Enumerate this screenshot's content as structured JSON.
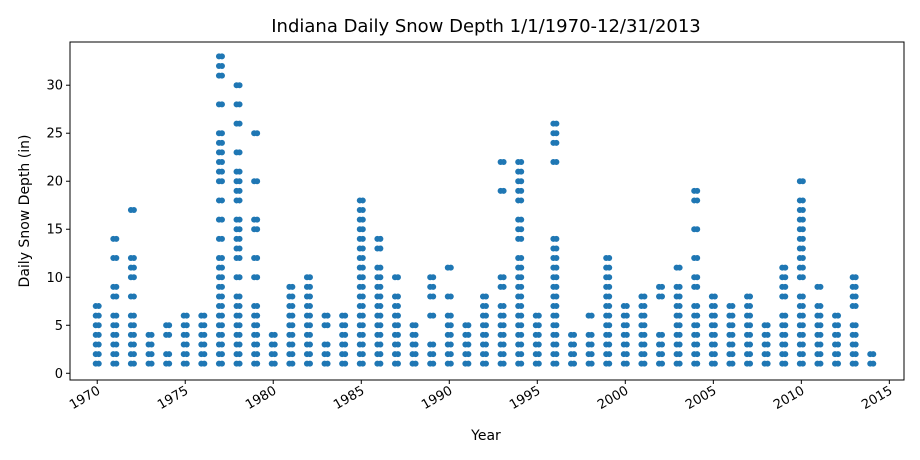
{
  "chart_data": {
    "type": "scatter",
    "title": "Indiana Daily Snow Depth 1/1/1970-12/31/2013",
    "xlabel": "Year",
    "ylabel": "Daily Snow Depth (in)",
    "xlim": [
      "1968-06-15",
      "2015-11-01"
    ],
    "ylim": [
      -0.7,
      34.5
    ],
    "x_ticks": [
      "1970",
      "1975",
      "1980",
      "1985",
      "1990",
      "1995",
      "2000",
      "2005",
      "2010",
      "2015"
    ],
    "y_ticks": [
      0,
      5,
      10,
      15,
      20,
      25,
      30
    ],
    "grid": false,
    "marker_color": "#1f77b4",
    "series": [
      {
        "points": [
          [
            "1970-01-01",
            [
              1,
              2,
              3,
              4,
              5,
              6,
              7
            ]
          ],
          [
            "1971-01-01",
            [
              1,
              2,
              3,
              4,
              5,
              6,
              8,
              9,
              12,
              14
            ]
          ],
          [
            "1972-01-01",
            [
              1,
              2,
              3,
              4,
              5,
              6,
              8,
              10,
              11,
              12,
              17
            ]
          ],
          [
            "1973-01-01",
            [
              1,
              2,
              3,
              4
            ]
          ],
          [
            "1974-01-01",
            [
              1,
              2,
              4,
              5
            ]
          ],
          [
            "1975-01-01",
            [
              1,
              2,
              3,
              4,
              5,
              6
            ]
          ],
          [
            "1976-01-01",
            [
              1,
              2,
              3,
              4,
              5,
              6
            ]
          ],
          [
            "1977-01-01",
            [
              1,
              2,
              3,
              4,
              5,
              6,
              7,
              8,
              9,
              10,
              11,
              12,
              14,
              16,
              18,
              20,
              21,
              22,
              23,
              24,
              25,
              28,
              31,
              32,
              33
            ]
          ],
          [
            "1978-01-01",
            [
              1,
              2,
              3,
              4,
              5,
              6,
              7,
              8,
              10,
              12,
              13,
              14,
              15,
              16,
              18,
              19,
              20,
              21,
              23,
              26,
              28,
              30
            ]
          ],
          [
            "1979-01-01",
            [
              1,
              2,
              3,
              4,
              5,
              6,
              7,
              10,
              12,
              15,
              16,
              20,
              25
            ]
          ],
          [
            "1980-01-01",
            [
              1,
              2,
              3,
              4
            ]
          ],
          [
            "1981-01-01",
            [
              1,
              2,
              3,
              4,
              5,
              6,
              7,
              8,
              9
            ]
          ],
          [
            "1982-01-01",
            [
              1,
              2,
              3,
              4,
              5,
              6,
              7,
              8,
              9,
              10
            ]
          ],
          [
            "1983-01-01",
            [
              1,
              2,
              3,
              5,
              6
            ]
          ],
          [
            "1984-01-01",
            [
              1,
              2,
              3,
              4,
              5,
              6
            ]
          ],
          [
            "1985-01-01",
            [
              1,
              2,
              3,
              4,
              5,
              6,
              7,
              8,
              9,
              10,
              11,
              12,
              13,
              14,
              15,
              16,
              17,
              18
            ]
          ],
          [
            "1986-01-01",
            [
              1,
              2,
              3,
              4,
              5,
              6,
              7,
              8,
              9,
              10,
              11,
              13,
              14
            ]
          ],
          [
            "1987-01-01",
            [
              1,
              2,
              3,
              4,
              5,
              6,
              7,
              8,
              10
            ]
          ],
          [
            "1988-01-01",
            [
              1,
              2,
              3,
              4,
              5
            ]
          ],
          [
            "1989-01-01",
            [
              1,
              2,
              3,
              6,
              8,
              9,
              10
            ]
          ],
          [
            "1990-01-01",
            [
              1,
              2,
              3,
              4,
              5,
              6,
              8,
              11
            ]
          ],
          [
            "1991-01-01",
            [
              1,
              2,
              3,
              4,
              5
            ]
          ],
          [
            "1992-01-01",
            [
              1,
              2,
              3,
              4,
              5,
              6,
              7,
              8
            ]
          ],
          [
            "1993-01-01",
            [
              1,
              2,
              3,
              4,
              5,
              6,
              7,
              9,
              10,
              19,
              22
            ]
          ],
          [
            "1994-01-01",
            [
              1,
              2,
              3,
              4,
              5,
              6,
              7,
              8,
              9,
              10,
              11,
              12,
              14,
              15,
              16,
              18,
              19,
              20,
              21,
              22
            ]
          ],
          [
            "1995-01-01",
            [
              1,
              2,
              3,
              4,
              5,
              6
            ]
          ],
          [
            "1996-01-01",
            [
              1,
              2,
              3,
              4,
              5,
              6,
              7,
              8,
              9,
              10,
              11,
              12,
              13,
              14,
              22,
              24,
              25,
              26
            ]
          ],
          [
            "1997-01-01",
            [
              1,
              2,
              3,
              4
            ]
          ],
          [
            "1998-01-01",
            [
              1,
              2,
              3,
              4,
              6
            ]
          ],
          [
            "1999-01-01",
            [
              1,
              2,
              3,
              4,
              5,
              6,
              7,
              8,
              9,
              10,
              11,
              12
            ]
          ],
          [
            "2000-01-01",
            [
              1,
              2,
              3,
              4,
              5,
              6,
              7
            ]
          ],
          [
            "2001-01-01",
            [
              1,
              2,
              3,
              4,
              5,
              6,
              7,
              8
            ]
          ],
          [
            "2002-01-01",
            [
              1,
              2,
              3,
              4,
              8,
              9
            ]
          ],
          [
            "2003-01-01",
            [
              1,
              2,
              3,
              4,
              5,
              6,
              7,
              8,
              9,
              11
            ]
          ],
          [
            "2004-01-01",
            [
              1,
              2,
              3,
              4,
              5,
              6,
              7,
              9,
              10,
              12,
              15,
              18,
              19
            ]
          ],
          [
            "2005-01-01",
            [
              1,
              2,
              3,
              4,
              5,
              6,
              7,
              8
            ]
          ],
          [
            "2006-01-01",
            [
              1,
              2,
              3,
              4,
              5,
              6,
              7
            ]
          ],
          [
            "2007-01-01",
            [
              1,
              2,
              3,
              4,
              5,
              6,
              7,
              8
            ]
          ],
          [
            "2008-01-01",
            [
              1,
              2,
              3,
              4,
              5
            ]
          ],
          [
            "2009-01-01",
            [
              1,
              2,
              3,
              4,
              5,
              6,
              8,
              9,
              10,
              11
            ]
          ],
          [
            "2010-01-01",
            [
              1,
              2,
              3,
              4,
              5,
              6,
              7,
              8,
              10,
              11,
              12,
              13,
              14,
              15,
              16,
              17,
              18,
              20
            ]
          ],
          [
            "2011-01-01",
            [
              1,
              2,
              3,
              4,
              5,
              6,
              7,
              9
            ]
          ],
          [
            "2012-01-01",
            [
              1,
              2,
              3,
              4,
              5,
              6
            ]
          ],
          [
            "2013-01-01",
            [
              1,
              2,
              3,
              4,
              5,
              7,
              8,
              9,
              10
            ]
          ],
          [
            "2014-01-01",
            [
              1,
              2
            ]
          ]
        ]
      }
    ]
  }
}
